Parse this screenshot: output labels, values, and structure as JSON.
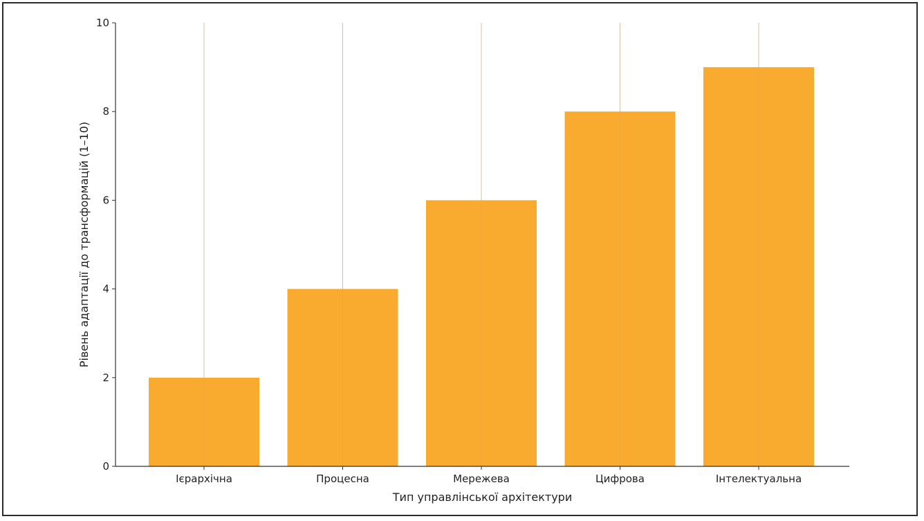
{
  "chart_data": {
    "type": "bar",
    "categories": [
      "Ієрархічна",
      "Процесна",
      "Мережева",
      "Цифрова",
      "Інтелектуальна"
    ],
    "values": [
      2,
      4,
      6,
      8,
      9
    ],
    "title": "",
    "xlabel": "Тип управлінської архітектури",
    "ylabel": "Рівень адаптації до трансформацій (1–10)",
    "ylim": [
      0,
      10
    ],
    "yticks": [
      0,
      2,
      4,
      6,
      8,
      10
    ],
    "grid": "vertical",
    "colors": {
      "bar": "#F9AB30",
      "grid": "#cfcfcf",
      "axis": "#333333"
    }
  }
}
